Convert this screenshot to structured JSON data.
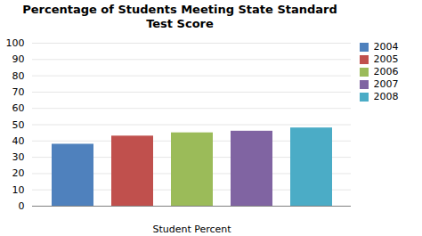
{
  "chart_data": {
    "type": "bar",
    "title": "Percentage of Students Meeting State Standard\nTest Score",
    "xlabel": "Student Percent",
    "categories": [
      "2004",
      "2005",
      "2006",
      "2007",
      "2008"
    ],
    "values": [
      38,
      43,
      45,
      46,
      48
    ],
    "colors": [
      "#4F81BD",
      "#C0504D",
      "#9BBB59",
      "#8064A2",
      "#4BACC6"
    ],
    "ylim": [
      0,
      100
    ],
    "yticks": [
      0,
      10,
      20,
      30,
      40,
      50,
      60,
      70,
      80,
      90,
      100
    ],
    "grid": true,
    "legend": "right",
    "tick_labels": "y"
  }
}
